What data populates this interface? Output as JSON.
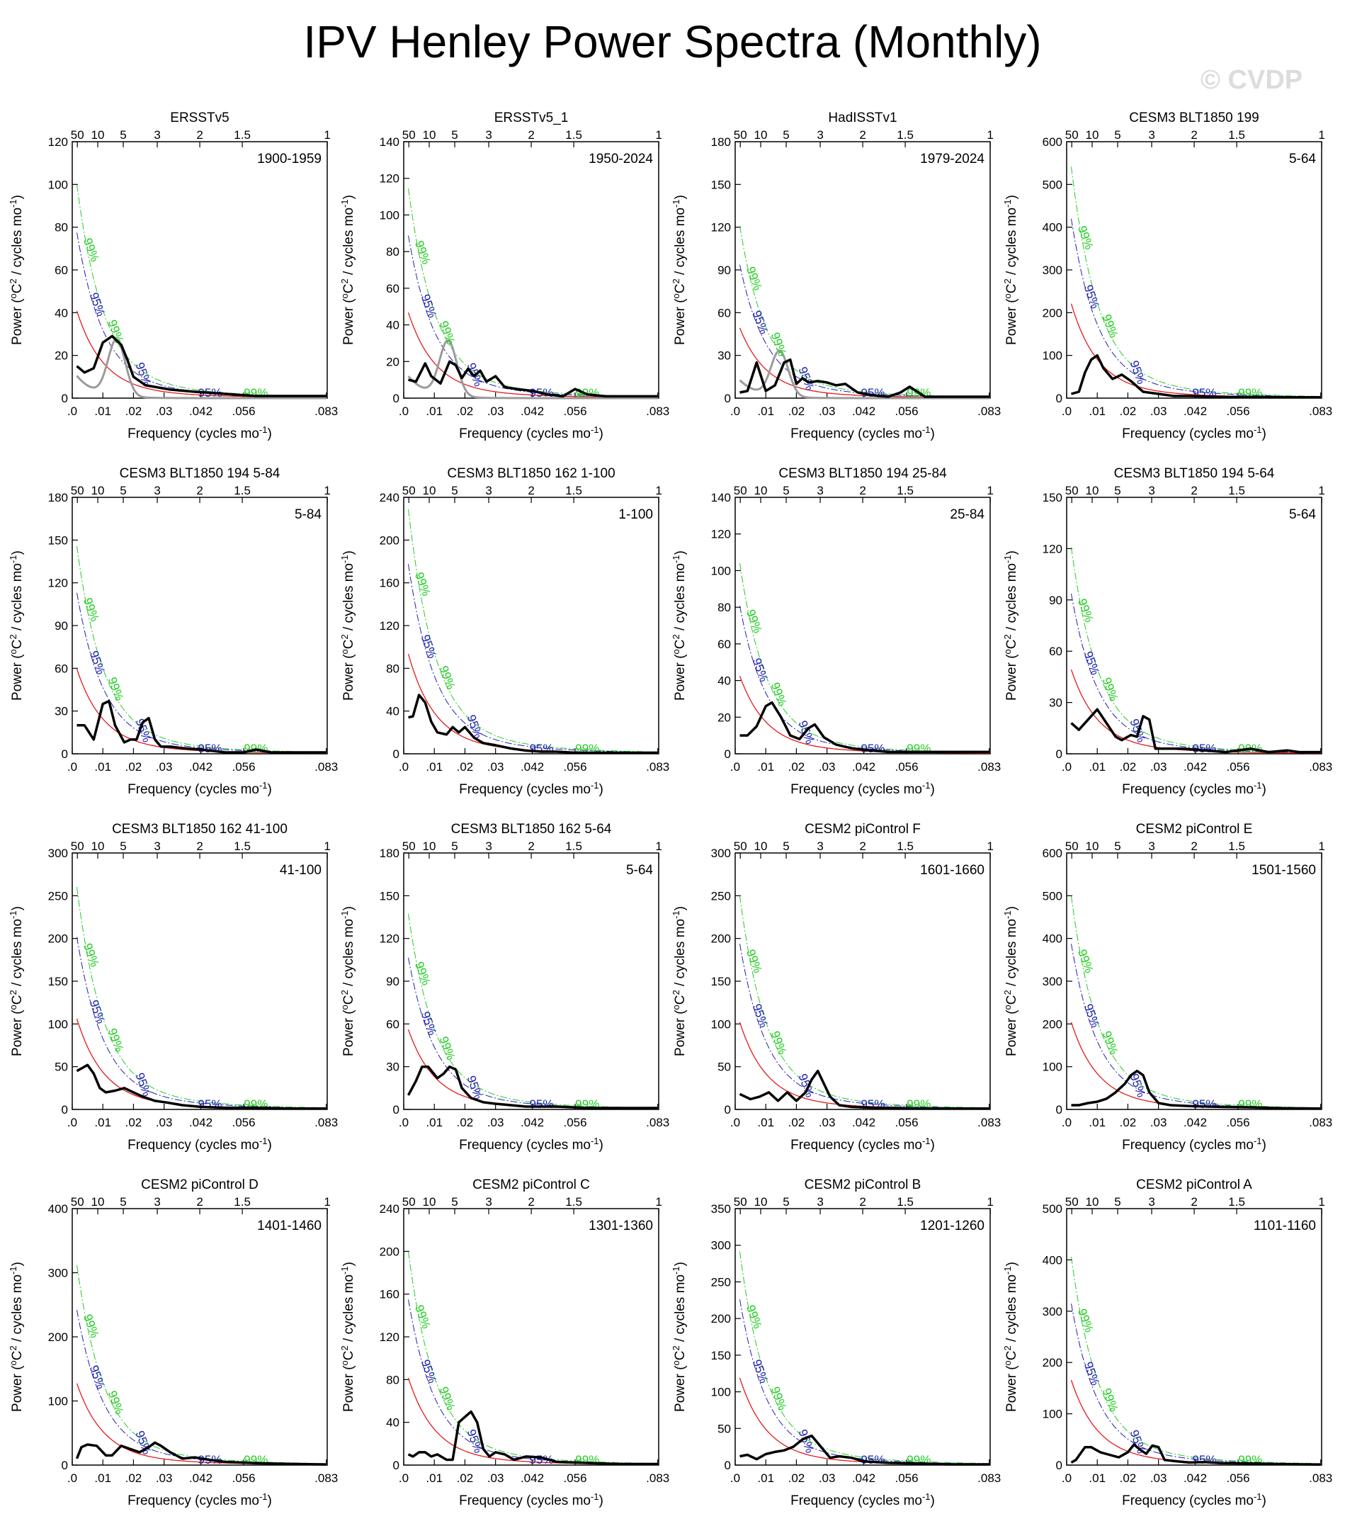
{
  "title": "IPV Henley Power Spectra (Monthly)",
  "watermark": "© CVDP",
  "colors": {
    "spectrum": "#000000",
    "lag1_spectrum": "#9b9b9b",
    "red_noise": "#e41a1c",
    "ci95": "#1f1fb4",
    "ci99": "#22cc22"
  },
  "chart_data": [
    {
      "type": "line",
      "title": "ERSSTv5",
      "period": "1900-1959",
      "ylim": [
        0,
        120
      ],
      "yticks": [
        0,
        20,
        40,
        60,
        80,
        100,
        120
      ],
      "red0": 48,
      "peak_gray": true,
      "spectrum_x": [
        0.0015,
        0.004,
        0.007,
        0.01,
        0.013,
        0.016,
        0.018,
        0.02,
        0.024,
        0.028,
        0.032,
        0.04,
        0.05,
        0.06,
        0.07,
        0.083
      ],
      "spectrum_y": [
        15,
        12,
        14,
        26,
        29,
        25,
        18,
        10,
        6,
        5,
        4,
        3,
        2,
        1,
        1,
        1
      ]
    },
    {
      "type": "line",
      "title": "ERSSTv5_1",
      "period": "1950-2024",
      "ylim": [
        0,
        140
      ],
      "yticks": [
        0,
        20,
        40,
        60,
        80,
        100,
        120,
        140
      ],
      "red0": 55,
      "peak_gray": true,
      "spectrum_x": [
        0.0015,
        0.004,
        0.007,
        0.009,
        0.012,
        0.015,
        0.017,
        0.019,
        0.021,
        0.023,
        0.025,
        0.027,
        0.03,
        0.033,
        0.037,
        0.042,
        0.047,
        0.052,
        0.056,
        0.06,
        0.066,
        0.072,
        0.078,
        0.083
      ],
      "spectrum_y": [
        10,
        9,
        19,
        12,
        8,
        20,
        18,
        11,
        16,
        12,
        15,
        9,
        12,
        6,
        5,
        4,
        2,
        1,
        5,
        2,
        1,
        1,
        1,
        1
      ]
    },
    {
      "type": "line",
      "title": "HadISSTv1",
      "period": "1979-2024",
      "ylim": [
        0,
        180
      ],
      "yticks": [
        0,
        30,
        60,
        90,
        120,
        150,
        180
      ],
      "red0": 58,
      "peak_gray": true,
      "spectrum_x": [
        0.0015,
        0.004,
        0.007,
        0.01,
        0.013,
        0.016,
        0.018,
        0.02,
        0.022,
        0.024,
        0.027,
        0.03,
        0.033,
        0.036,
        0.04,
        0.045,
        0.05,
        0.054,
        0.057,
        0.062,
        0.07,
        0.083
      ],
      "spectrum_y": [
        4,
        5,
        25,
        5,
        9,
        25,
        27,
        10,
        14,
        11,
        12,
        11,
        9,
        10,
        4,
        2,
        1,
        4,
        8,
        1,
        1,
        1
      ]
    },
    {
      "type": "line",
      "title": "CESM3 BLT1850 199",
      "period": "5-64",
      "ylim": [
        0,
        600
      ],
      "yticks": [
        0,
        100,
        200,
        300,
        400,
        500,
        600
      ],
      "red0": 260,
      "peak_gray": false,
      "spectrum_x": [
        0.0015,
        0.004,
        0.006,
        0.008,
        0.01,
        0.012,
        0.015,
        0.018,
        0.021,
        0.025,
        0.03,
        0.035,
        0.04,
        0.05,
        0.06,
        0.07,
        0.083
      ],
      "spectrum_y": [
        10,
        15,
        60,
        90,
        100,
        70,
        45,
        55,
        40,
        15,
        10,
        5,
        5,
        3,
        3,
        2,
        2
      ]
    },
    {
      "type": "line",
      "title": "CESM3 BLT1850 194 5-84",
      "period": "5-84",
      "ylim": [
        0,
        180
      ],
      "yticks": [
        0,
        30,
        60,
        90,
        120,
        150,
        180
      ],
      "red0": 70,
      "peak_gray": false,
      "spectrum_x": [
        0.0015,
        0.004,
        0.007,
        0.01,
        0.012,
        0.014,
        0.017,
        0.019,
        0.021,
        0.023,
        0.025,
        0.027,
        0.029,
        0.032,
        0.036,
        0.042,
        0.05,
        0.056,
        0.06,
        0.065,
        0.07,
        0.077,
        0.083
      ],
      "spectrum_y": [
        20,
        20,
        10,
        35,
        37,
        20,
        8,
        10,
        10,
        22,
        25,
        10,
        5,
        5,
        4,
        3,
        1,
        1,
        3,
        1,
        1,
        1,
        1
      ]
    },
    {
      "type": "line",
      "title": "CESM3 BLT1850 162 1-100",
      "period": "1-100",
      "ylim": [
        0,
        240
      ],
      "yticks": [
        0,
        40,
        80,
        120,
        160,
        200,
        240
      ],
      "red0": 110,
      "peak_gray": false,
      "spectrum_x": [
        0.0015,
        0.003,
        0.005,
        0.007,
        0.009,
        0.011,
        0.014,
        0.016,
        0.018,
        0.02,
        0.023,
        0.026,
        0.03,
        0.035,
        0.04,
        0.045,
        0.05,
        0.056,
        0.06,
        0.07,
        0.083
      ],
      "spectrum_y": [
        34,
        35,
        55,
        48,
        30,
        20,
        18,
        25,
        20,
        25,
        15,
        10,
        8,
        5,
        3,
        2,
        2,
        1,
        1,
        1,
        1
      ]
    },
    {
      "type": "line",
      "title": "CESM3 BLT1850 194 25-84",
      "period": "25-84",
      "ylim": [
        0,
        140
      ],
      "yticks": [
        0,
        20,
        40,
        60,
        80,
        100,
        120,
        140
      ],
      "red0": 50,
      "peak_gray": false,
      "spectrum_x": [
        0.0015,
        0.004,
        0.007,
        0.01,
        0.012,
        0.015,
        0.018,
        0.021,
        0.024,
        0.026,
        0.029,
        0.033,
        0.038,
        0.043,
        0.05,
        0.058,
        0.065,
        0.07,
        0.083
      ],
      "spectrum_y": [
        10,
        10,
        15,
        26,
        28,
        20,
        10,
        8,
        14,
        16,
        9,
        5,
        3,
        2,
        1,
        1,
        1,
        1,
        1
      ]
    },
    {
      "type": "line",
      "title": "CESM3 BLT1850 194 5-64",
      "period": "5-64",
      "ylim": [
        0,
        150
      ],
      "yticks": [
        0,
        30,
        60,
        90,
        120,
        150
      ],
      "red0": 58,
      "peak_gray": false,
      "spectrum_x": [
        0.0015,
        0.004,
        0.007,
        0.01,
        0.013,
        0.016,
        0.018,
        0.021,
        0.023,
        0.025,
        0.027,
        0.029,
        0.033,
        0.038,
        0.045,
        0.052,
        0.06,
        0.066,
        0.072,
        0.076,
        0.083
      ],
      "spectrum_y": [
        18,
        14,
        20,
        26,
        18,
        10,
        8,
        11,
        10,
        22,
        20,
        3,
        3,
        3,
        2,
        1,
        3,
        1,
        2,
        1,
        1
      ]
    },
    {
      "type": "line",
      "title": "CESM3 BLT1850 162 41-100",
      "period": "41-100",
      "ylim": [
        0,
        300
      ],
      "yticks": [
        0,
        50,
        100,
        150,
        200,
        250,
        300
      ],
      "red0": 125,
      "peak_gray": false,
      "spectrum_x": [
        0.0015,
        0.003,
        0.005,
        0.007,
        0.009,
        0.011,
        0.014,
        0.017,
        0.02,
        0.023,
        0.027,
        0.031,
        0.036,
        0.042,
        0.05,
        0.06,
        0.07,
        0.083
      ],
      "spectrum_y": [
        45,
        48,
        52,
        42,
        25,
        20,
        22,
        25,
        20,
        15,
        10,
        8,
        5,
        3,
        2,
        2,
        1,
        1
      ]
    },
    {
      "type": "line",
      "title": "CESM3 BLT1850 162 5-64",
      "period": "5-64",
      "ylim": [
        0,
        180
      ],
      "yticks": [
        0,
        30,
        60,
        90,
        120,
        150,
        180
      ],
      "red0": 66,
      "peak_gray": false,
      "spectrum_x": [
        0.0015,
        0.004,
        0.006,
        0.008,
        0.011,
        0.013,
        0.015,
        0.017,
        0.019,
        0.022,
        0.026,
        0.03,
        0.035,
        0.04,
        0.05,
        0.06,
        0.07,
        0.083
      ],
      "spectrum_y": [
        10,
        20,
        30,
        30,
        22,
        25,
        30,
        28,
        15,
        8,
        5,
        4,
        3,
        2,
        2,
        1,
        1,
        1
      ]
    },
    {
      "type": "line",
      "title": "CESM2 piControl F",
      "period": "1601-1660",
      "ylim": [
        0,
        300
      ],
      "yticks": [
        0,
        50,
        100,
        150,
        200,
        250,
        300
      ],
      "red0": 120,
      "peak_gray": false,
      "spectrum_x": [
        0.0015,
        0.005,
        0.008,
        0.011,
        0.014,
        0.017,
        0.02,
        0.023,
        0.025,
        0.027,
        0.029,
        0.031,
        0.034,
        0.038,
        0.045,
        0.05,
        0.06,
        0.07,
        0.083
      ],
      "spectrum_y": [
        18,
        12,
        15,
        20,
        10,
        20,
        10,
        20,
        35,
        45,
        30,
        15,
        5,
        3,
        2,
        2,
        1,
        1,
        1
      ]
    },
    {
      "type": "line",
      "title": "CESM2 piControl E",
      "period": "1501-1560",
      "ylim": [
        0,
        600
      ],
      "yticks": [
        0,
        100,
        200,
        300,
        400,
        500,
        600
      ],
      "red0": 240,
      "peak_gray": false,
      "spectrum_x": [
        0.0015,
        0.004,
        0.007,
        0.01,
        0.013,
        0.016,
        0.019,
        0.021,
        0.023,
        0.025,
        0.027,
        0.03,
        0.034,
        0.04,
        0.05,
        0.06,
        0.07,
        0.083
      ],
      "spectrum_y": [
        10,
        10,
        15,
        18,
        25,
        40,
        60,
        80,
        90,
        80,
        40,
        15,
        10,
        8,
        6,
        5,
        3,
        2
      ]
    },
    {
      "type": "line",
      "title": "CESM2 piControl D",
      "period": "1401-1460",
      "ylim": [
        0,
        400
      ],
      "yticks": [
        0,
        100,
        200,
        300,
        400
      ],
      "red0": 150,
      "peak_gray": false,
      "spectrum_x": [
        0.0015,
        0.003,
        0.005,
        0.008,
        0.011,
        0.013,
        0.016,
        0.019,
        0.022,
        0.025,
        0.027,
        0.029,
        0.032,
        0.036,
        0.04,
        0.045,
        0.05,
        0.06,
        0.07,
        0.083
      ],
      "spectrum_y": [
        10,
        28,
        32,
        30,
        15,
        15,
        30,
        25,
        20,
        28,
        35,
        30,
        20,
        10,
        12,
        8,
        5,
        3,
        2,
        1
      ]
    },
    {
      "type": "line",
      "title": "CESM2 piControl C",
      "period": "1301-1360",
      "ylim": [
        0,
        240
      ],
      "yticks": [
        0,
        40,
        80,
        120,
        160,
        200,
        240
      ],
      "red0": 96,
      "peak_gray": false,
      "spectrum_x": [
        0.0015,
        0.003,
        0.005,
        0.007,
        0.009,
        0.011,
        0.014,
        0.016,
        0.018,
        0.02,
        0.022,
        0.024,
        0.026,
        0.028,
        0.03,
        0.033,
        0.036,
        0.04,
        0.045,
        0.05,
        0.06,
        0.07,
        0.083
      ],
      "spectrum_y": [
        10,
        8,
        12,
        12,
        8,
        10,
        5,
        5,
        40,
        45,
        50,
        40,
        15,
        8,
        12,
        10,
        5,
        8,
        7,
        3,
        2,
        1,
        1
      ]
    },
    {
      "type": "line",
      "title": "CESM2 piControl B",
      "period": "1201-1260",
      "ylim": [
        0,
        350
      ],
      "yticks": [
        0,
        50,
        100,
        150,
        200,
        250,
        300,
        350
      ],
      "red0": 140,
      "peak_gray": false,
      "spectrum_x": [
        0.0015,
        0.004,
        0.007,
        0.01,
        0.013,
        0.016,
        0.019,
        0.022,
        0.025,
        0.028,
        0.031,
        0.034,
        0.038,
        0.042,
        0.05,
        0.06,
        0.07,
        0.083
      ],
      "spectrum_y": [
        12,
        14,
        8,
        15,
        18,
        20,
        25,
        35,
        40,
        25,
        10,
        12,
        10,
        5,
        3,
        2,
        1,
        1
      ]
    },
    {
      "type": "line",
      "title": "CESM2 piControl A",
      "period": "1101-1160",
      "ylim": [
        0,
        500
      ],
      "yticks": [
        0,
        100,
        200,
        300,
        400,
        500
      ],
      "red0": 195,
      "peak_gray": false,
      "spectrum_x": [
        0.0015,
        0.003,
        0.006,
        0.008,
        0.011,
        0.014,
        0.017,
        0.02,
        0.022,
        0.024,
        0.026,
        0.028,
        0.03,
        0.032,
        0.035,
        0.04,
        0.045,
        0.05,
        0.06,
        0.07,
        0.083
      ],
      "spectrum_y": [
        5,
        10,
        35,
        35,
        25,
        20,
        15,
        25,
        40,
        30,
        22,
        38,
        35,
        10,
        8,
        5,
        6,
        4,
        3,
        2,
        1
      ]
    }
  ],
  "axes": {
    "xlabel": "Frequency (cycles mo",
    "xlabel_sup": "-1",
    "xlabel_end": ")",
    "ylabel_a": "Power (",
    "ylabel_sup1": "o",
    "ylabel_b": "C",
    "ylabel_sup2": "2",
    "ylabel_c": " / cycles mo",
    "ylabel_sup3": "-1",
    "ylabel_d": ")",
    "xticks": [
      ".0",
      ".01",
      ".02",
      ".03",
      ".042",
      ".056",
      ".083"
    ],
    "xtick_vals": [
      0,
      0.01,
      0.02,
      0.03,
      0.042,
      0.056,
      0.083
    ],
    "period_ticks": [
      "50",
      "10",
      "5",
      "3",
      "2",
      "1.5",
      "1"
    ],
    "period_vals": [
      50,
      10,
      5,
      3,
      2,
      1.5,
      1
    ],
    "ci95_label": "95%",
    "ci99_label": "99%"
  }
}
